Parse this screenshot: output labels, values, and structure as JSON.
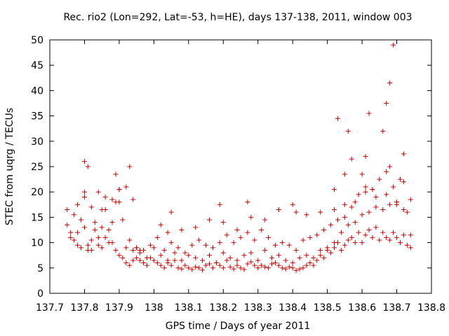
{
  "chart_data": {
    "type": "scatter",
    "title": "Rec. rio2 (Lon=292, Lat=-53, h=HE), days 137-138, 2011, window 003",
    "xlabel": "GPS time / Days of year 2011",
    "ylabel": "STEC from uqrg / TECUs",
    "xlim": [
      137.7,
      138.8
    ],
    "ylim": [
      0,
      50
    ],
    "xticks": [
      "137.7",
      "137.8",
      "137.9",
      "138",
      "138.1",
      "138.2",
      "138.3",
      "138.4",
      "138.5",
      "138.6",
      "138.7",
      "138.8"
    ],
    "yticks": [
      "0",
      "5",
      "10",
      "15",
      "20",
      "25",
      "30",
      "35",
      "40",
      "45",
      "50"
    ],
    "grid": false,
    "legend": "none",
    "marker": "plus",
    "color": "#cc0000",
    "series": [
      {
        "x": [
          137.75,
          137.76,
          137.77,
          137.78,
          137.79,
          137.8,
          137.81,
          137.82,
          137.83,
          137.84,
          137.85,
          137.86,
          137.87,
          137.88,
          137.89,
          137.9,
          137.91,
          137.92,
          137.93,
          137.94,
          137.95,
          137.96,
          137.97,
          137.98,
          137.99,
          138.0,
          138.01,
          138.02,
          138.03,
          138.04,
          138.05,
          138.06,
          138.07,
          138.08,
          138.09,
          138.1,
          138.11,
          138.12,
          138.13,
          138.14,
          138.15,
          138.16,
          138.17,
          138.18,
          138.19,
          138.2,
          138.21,
          138.22,
          138.23,
          138.24,
          138.25,
          138.26,
          138.27,
          138.28,
          138.29,
          138.3,
          138.31,
          138.32,
          138.33,
          138.34,
          138.35,
          138.36,
          138.37,
          138.38,
          138.39,
          138.4,
          138.41,
          138.42,
          138.43,
          138.44,
          138.45,
          138.46,
          138.47,
          138.48,
          138.49,
          138.5,
          138.51,
          138.52,
          138.53,
          138.54,
          138.55,
          138.56,
          138.57,
          138.58,
          138.59,
          138.6,
          138.61,
          138.62,
          138.63,
          138.64,
          138.65,
          138.66,
          138.67,
          138.68,
          138.69,
          138.7,
          138.71,
          138.72,
          138.73,
          138.74,
          137.75,
          137.76,
          137.78,
          137.8,
          137.82,
          137.84,
          137.86,
          137.88,
          137.9,
          137.92,
          137.94,
          137.96,
          137.98,
          138.0,
          138.02,
          138.04,
          138.06,
          138.08,
          138.1,
          138.12,
          138.14,
          138.16,
          138.18,
          138.2,
          138.22,
          138.24,
          138.26,
          138.28,
          138.3,
          138.32,
          138.34,
          138.36,
          138.38,
          138.4,
          138.42,
          138.44,
          138.46,
          138.48,
          138.5,
          138.52,
          138.54,
          138.56,
          138.58,
          138.6,
          138.62,
          138.64,
          138.66,
          138.68,
          138.7,
          138.72,
          138.74,
          137.77,
          137.79,
          137.81,
          137.83,
          137.85,
          137.87,
          137.89,
          137.91,
          137.93,
          137.95,
          137.97,
          137.99,
          138.01,
          138.03,
          138.05,
          138.07,
          138.09,
          138.11,
          138.13,
          138.15,
          138.17,
          138.19,
          138.21,
          138.23,
          138.25,
          138.27,
          138.29,
          138.31,
          138.33,
          138.35,
          138.37,
          138.39,
          138.41,
          138.43,
          138.45,
          138.47,
          138.49,
          138.51,
          138.53,
          138.55,
          138.57,
          138.59,
          138.61,
          138.63,
          138.65,
          138.67,
          138.69,
          138.71,
          138.73,
          137.78,
          137.8,
          137.82,
          137.84,
          137.86,
          137.88,
          137.9,
          137.92,
          137.94,
          137.96,
          138.02,
          138.04,
          138.08,
          138.12,
          138.16,
          138.2,
          138.24,
          138.28,
          138.32,
          138.36,
          138.4,
          138.44,
          138.48,
          138.52,
          138.55,
          138.58,
          138.61,
          138.64,
          138.67,
          138.7,
          137.8,
          137.81,
          137.85,
          137.89,
          137.9,
          137.93,
          137.95,
          138.05,
          138.19,
          138.27,
          138.36,
          138.41,
          138.52,
          138.53,
          138.55,
          138.56,
          138.57,
          138.6,
          138.61,
          138.62,
          138.63,
          138.66,
          138.67,
          138.68,
          138.68,
          138.69,
          138.7,
          138.72,
          138.72,
          138.74
        ],
        "y": [
          16.5,
          12.0,
          10.5,
          9.5,
          9.0,
          20.0,
          9.5,
          8.5,
          12.5,
          11.0,
          9.0,
          16.5,
          10.0,
          14.0,
          8.5,
          7.5,
          7.0,
          6.0,
          5.5,
          6.5,
          7.0,
          6.5,
          6.0,
          5.5,
          7.0,
          6.5,
          6.0,
          5.5,
          5.0,
          6.0,
          5.5,
          6.5,
          5.0,
          4.8,
          5.5,
          5.0,
          4.7,
          5.2,
          5.0,
          4.6,
          5.5,
          5.8,
          5.0,
          6.0,
          5.5,
          5.0,
          6.5,
          5.2,
          4.8,
          5.5,
          5.0,
          4.7,
          5.8,
          6.2,
          5.5,
          5.0,
          5.5,
          5.2,
          5.0,
          5.8,
          6.0,
          5.5,
          5.0,
          4.8,
          5.2,
          5.0,
          4.5,
          4.8,
          5.0,
          5.5,
          6.0,
          5.5,
          6.5,
          7.5,
          7.0,
          8.5,
          8.0,
          9.0,
          10.0,
          8.5,
          9.5,
          10.5,
          11.0,
          10.0,
          12.0,
          10.0,
          11.5,
          12.5,
          11.0,
          13.0,
          10.5,
          12.0,
          11.0,
          10.5,
          12.0,
          11.0,
          10.0,
          11.5,
          9.5,
          9.0,
          13.5,
          11.0,
          12.0,
          13.0,
          10.5,
          9.5,
          11.0,
          10.0,
          18.0,
          9.0,
          8.5,
          8.0,
          7.0,
          9.0,
          7.5,
          6.5,
          8.0,
          6.5,
          7.5,
          7.0,
          6.5,
          7.5,
          6.0,
          8.0,
          7.0,
          6.5,
          7.5,
          8.0,
          6.5,
          8.5,
          7.0,
          7.5,
          6.5,
          6.0,
          7.0,
          7.5,
          7.0,
          8.5,
          9.0,
          10.0,
          12.0,
          13.5,
          14.0,
          15.5,
          16.0,
          17.0,
          16.5,
          17.5,
          18.0,
          16.5,
          11.5,
          15.5,
          14.5,
          8.5,
          14.0,
          13.0,
          12.5,
          18.0,
          14.5,
          10.5,
          9.0,
          8.5,
          9.5,
          11.0,
          8.5,
          10.0,
          9.0,
          8.0,
          9.5,
          10.5,
          9.5,
          9.0,
          10.0,
          11.5,
          10.0,
          11.0,
          12.0,
          10.5,
          12.5,
          11.0,
          9.5,
          10.0,
          9.5,
          8.5,
          10.5,
          11.0,
          11.5,
          12.5,
          13.5,
          14.5,
          15.0,
          17.0,
          19.5,
          21.0,
          20.5,
          22.5,
          24.0,
          21.0,
          22.5,
          16.0,
          17.5,
          19.0,
          17.0,
          20.0,
          19.0,
          18.5,
          20.5,
          21.0,
          18.5,
          8.5,
          13.5,
          12.0,
          12.5,
          13.0,
          14.5,
          14.0,
          12.5,
          15.0,
          14.5,
          16.5,
          17.5,
          15.5,
          16.0,
          16.5,
          17.5,
          18.0,
          20.0,
          19.0,
          19.5,
          17.5,
          26.0,
          25.0,
          16.5,
          23.5,
          20.5,
          25.0,
          9.0,
          16.0,
          17.5,
          18.0,
          16.5,
          16.0,
          20.5,
          34.5,
          23.5,
          32.0,
          26.5,
          23.5,
          27.0,
          35.5,
          20.5,
          32.0,
          37.5,
          25.0,
          41.5,
          49.0,
          18.0,
          22.0,
          27.5,
          18.5
        ]
      }
    ]
  }
}
